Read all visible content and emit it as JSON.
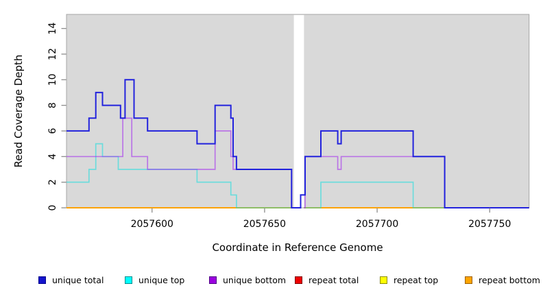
{
  "chart_data": {
    "type": "line",
    "subtype": "step-coverage-plot",
    "title": "",
    "xlabel": "Coordinate in Reference Genome",
    "ylabel": "Read Coverage Depth",
    "xlim": [
      2057562,
      2057767.5
    ],
    "ylim": [
      0,
      15.1
    ],
    "x_ticks": [
      2057600,
      2057650,
      2057700,
      2057750
    ],
    "y_ticks": [
      0,
      2,
      4,
      6,
      8,
      10,
      12,
      14
    ],
    "panel_bg": "#d9d9d9",
    "panel_border": "#a6a6a6",
    "tick_color": "#8c8c8c",
    "masked_region": {
      "from": 2057663,
      "to": 2057667.5,
      "color": "#ffffff"
    },
    "series": [
      {
        "name": "repeat-total",
        "label": "repeat total",
        "color": "#e01010",
        "opacity": 1,
        "width": 1.6,
        "segments": [
          {
            "points": [
              [
                2057562,
                0
              ]
            ],
            "end": 2057663
          },
          {
            "points": [
              [
                2057667.5,
                0
              ]
            ],
            "end": 2057767.5
          }
        ]
      },
      {
        "name": "repeat-top",
        "label": "repeat top",
        "color": "#ffff00",
        "opacity": 1,
        "width": 1.6,
        "segments": [
          {
            "points": [
              [
                2057562,
                0
              ]
            ],
            "end": 2057663
          },
          {
            "points": [
              [
                2057667.5,
                0
              ]
            ],
            "end": 2057767.5
          }
        ]
      },
      {
        "name": "repeat-bottom",
        "label": "repeat bottom",
        "color": "#ff9f00",
        "opacity": 1,
        "width": 1.7,
        "segments": [
          {
            "points": [
              [
                2057562,
                0
              ]
            ],
            "end": 2057663
          },
          {
            "points": [
              [
                2057667.5,
                0
              ]
            ],
            "end": 2057767.5
          }
        ]
      },
      {
        "name": "unique-top",
        "label": "unique top",
        "color": "#00e0e0",
        "opacity": 0.5,
        "width": 1.7,
        "segments": [
          {
            "points": [
              [
                2057562,
                2
              ],
              [
                2057572,
                3
              ],
              [
                2057575,
                5
              ],
              [
                2057578,
                4
              ],
              [
                2057585,
                3
              ],
              [
                2057620,
                2
              ],
              [
                2057635,
                1
              ],
              [
                2057637.5,
                0
              ]
            ],
            "end": 2057663
          },
          {
            "points": [
              [
                2057667.5,
                0
              ],
              [
                2057675,
                2
              ],
              [
                2057716,
                0
              ]
            ],
            "end": 2057767.5
          }
        ]
      },
      {
        "name": "unique-bottom",
        "label": "unique bottom",
        "color": "#a020f0",
        "opacity": 0.55,
        "width": 1.7,
        "segments": [
          {
            "points": [
              [
                2057562,
                4
              ],
              [
                2057587,
                7
              ],
              [
                2057591,
                4
              ],
              [
                2057598,
                3
              ],
              [
                2057628,
                6
              ],
              [
                2057635,
                4
              ],
              [
                2057636,
                3
              ],
              [
                2057662,
                0
              ]
            ],
            "end": 2057663
          },
          {
            "points": [
              [
                2057667.5,
                0
              ],
              [
                2057668,
                4
              ],
              [
                2057682.5,
                3
              ],
              [
                2057684,
                4
              ],
              [
                2057730,
                0
              ]
            ],
            "end": 2057767.5
          }
        ]
      },
      {
        "name": "unique-total",
        "label": "unique total",
        "color": "#2222dd",
        "opacity": 1,
        "width": 2,
        "segments": [
          {
            "points": [
              [
                2057562,
                6
              ],
              [
                2057572,
                7
              ],
              [
                2057575,
                9
              ],
              [
                2057578,
                8
              ],
              [
                2057586,
                7
              ],
              [
                2057588,
                10
              ],
              [
                2057592,
                7
              ],
              [
                2057598,
                6
              ],
              [
                2057620,
                5
              ],
              [
                2057628,
                8
              ],
              [
                2057635,
                7
              ],
              [
                2057636,
                4
              ],
              [
                2057637.5,
                3
              ],
              [
                2057662,
                0
              ],
              [
                2057666,
                1
              ],
              [
                2057668,
                4
              ],
              [
                2057675,
                6
              ],
              [
                2057682.5,
                5
              ],
              [
                2057684,
                6
              ],
              [
                2057716,
                4
              ],
              [
                2057730,
                0
              ]
            ],
            "end": 2057767.5
          }
        ]
      }
    ],
    "legend": {
      "position": "bottom",
      "items": [
        {
          "label": "unique total",
          "fill": "#1414cc",
          "border": "#00008b"
        },
        {
          "label": "unique top",
          "fill": "#00ffff",
          "border": "#008b8b"
        },
        {
          "label": "unique bottom",
          "fill": "#9c00e0",
          "border": "#4b0082"
        },
        {
          "label": "repeat total",
          "fill": "#ee0000",
          "border": "#7d0000"
        },
        {
          "label": "repeat top",
          "fill": "#ffff00",
          "border": "#8b8b00"
        },
        {
          "label": "repeat bottom",
          "fill": "#ffa500",
          "border": "#9c5f00"
        }
      ]
    }
  }
}
